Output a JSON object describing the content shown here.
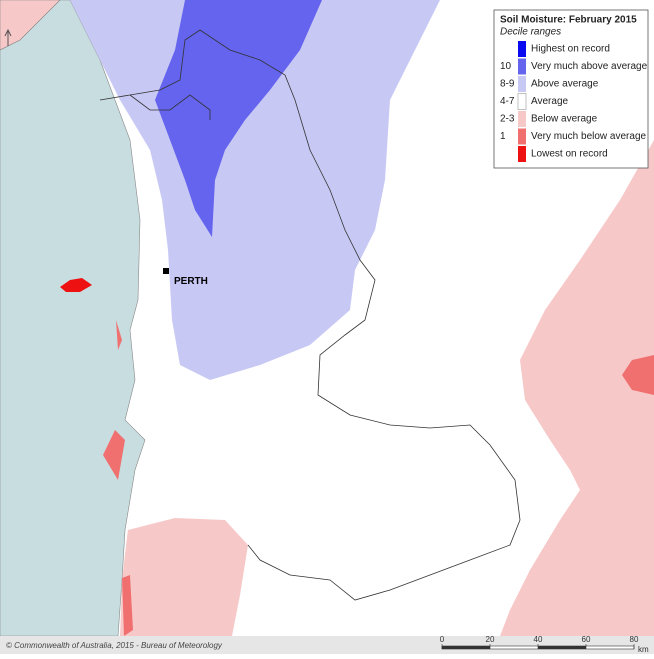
{
  "legend": {
    "title": "Soil Moisture: February 2015",
    "subtitle": "Decile ranges",
    "items": [
      {
        "label": "Highest on record",
        "color": "#0a0af0"
      },
      {
        "code": "10",
        "label": "Very much above average",
        "color": "#6464ee"
      },
      {
        "code": "8-9",
        "label": "Above average",
        "color": "#c8c8f5"
      },
      {
        "code": "4-7",
        "label": "Average",
        "color": "#ffffff"
      },
      {
        "code": "2-3",
        "label": "Below average",
        "color": "#f7c8c8"
      },
      {
        "code": "1",
        "label": "Very much below average",
        "color": "#f07070"
      },
      {
        "label": "Lowest on record",
        "color": "#ee1111"
      }
    ]
  },
  "places": [
    {
      "label": "PERTH"
    }
  ],
  "footer": {
    "copyright": "© Commonwealth of Australia, 2015 - Bureau of Meteorology",
    "scale": {
      "labels": [
        "0",
        "20",
        "40",
        "60",
        "80"
      ],
      "unit": "km"
    }
  }
}
